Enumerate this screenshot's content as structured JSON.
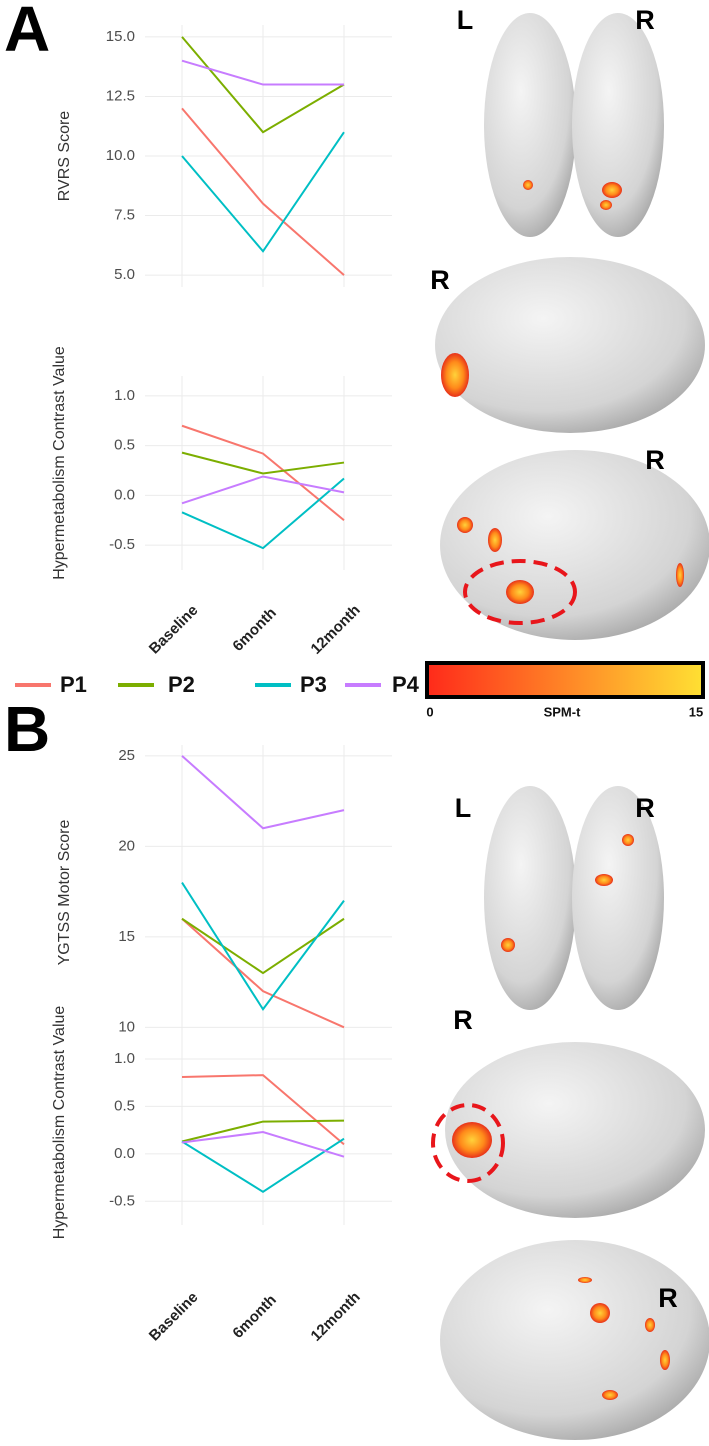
{
  "panels": [
    "A",
    "B"
  ],
  "brain_labels": [
    [
      "L",
      "R"
    ],
    [
      "R"
    ],
    [
      "R"
    ],
    [
      "L",
      "R"
    ],
    [
      "R"
    ],
    [
      "R"
    ]
  ],
  "colorbar": {
    "title": "SPM-t",
    "ticks": [
      0,
      15
    ],
    "colors": [
      "#ff2a1a",
      "#ffe033"
    ]
  },
  "chart_data": [
    {
      "type": "line",
      "y_label": "RVRS Score",
      "ylim": [
        4.5,
        15.5
      ],
      "yticks": [
        {
          "value": 5,
          "label": "5.0"
        },
        7.5,
        {
          "value": 10,
          "label": "10.0"
        },
        12.5,
        {
          "value": 15,
          "label": "15.0"
        }
      ],
      "grid": true,
      "series": [
        {
          "name": "P1",
          "color": "#f8766d",
          "values": [
            12,
            8,
            5
          ]
        },
        {
          "name": "P2",
          "color": "#7cae00",
          "values": [
            15,
            11,
            13
          ]
        },
        {
          "name": "P3",
          "color": "#00bfc4",
          "values": [
            10,
            6,
            11
          ]
        },
        {
          "name": "P4",
          "color": "#c77cff",
          "values": [
            14,
            13,
            13
          ]
        }
      ]
    },
    {
      "type": "line",
      "y_label": "Hypermetabolism Contrast Value",
      "ylim": [
        -0.75,
        1.2
      ],
      "categories": [
        "Baseline",
        "6month",
        "12month"
      ],
      "yticks": [
        -0.5,
        {
          "value": 0,
          "label": "0.0"
        },
        0.5,
        {
          "value": 1,
          "label": "1.0"
        }
      ],
      "grid": true,
      "series": [
        {
          "name": "P1",
          "color": "#f8766d",
          "values": [
            0.7,
            0.42,
            -0.25
          ]
        },
        {
          "name": "P2",
          "color": "#7cae00",
          "values": [
            0.43,
            0.22,
            0.33
          ]
        },
        {
          "name": "P3",
          "color": "#00bfc4",
          "values": [
            -0.17,
            -0.53,
            0.17
          ]
        },
        {
          "name": "P4",
          "color": "#c77cff",
          "values": [
            -0.08,
            0.19,
            0.03
          ]
        }
      ]
    },
    {
      "type": "line",
      "y_label": "YGTSS Motor Score",
      "ylim": [
        9.3,
        25.6
      ],
      "yticks": [
        10,
        15,
        20,
        25
      ],
      "grid": true,
      "series": [
        {
          "name": "P1",
          "color": "#f8766d",
          "values": [
            16,
            12,
            10
          ]
        },
        {
          "name": "P2",
          "color": "#7cae00",
          "values": [
            16,
            13,
            16
          ]
        },
        {
          "name": "P3",
          "color": "#00bfc4",
          "values": [
            18,
            11,
            17
          ]
        },
        {
          "name": "P4",
          "color": "#c77cff",
          "values": [
            25,
            21,
            22
          ]
        }
      ]
    },
    {
      "type": "line",
      "y_label": "Hypermetabolism Contrast Value",
      "ylim": [
        -0.75,
        1.2
      ],
      "categories": [
        "Baseline",
        "6month",
        "12month"
      ],
      "yticks": [
        -0.5,
        {
          "value": 0,
          "label": "0.0"
        },
        0.5,
        {
          "value": 1,
          "label": "1.0"
        }
      ],
      "grid": true,
      "series": [
        {
          "name": "P1",
          "color": "#f8766d",
          "values": [
            0.81,
            0.83,
            0.1
          ]
        },
        {
          "name": "P2",
          "color": "#7cae00",
          "values": [
            0.13,
            0.34,
            0.35
          ]
        },
        {
          "name": "P3",
          "color": "#00bfc4",
          "values": [
            0.13,
            -0.4,
            0.16
          ]
        },
        {
          "name": "P4",
          "color": "#c77cff",
          "values": [
            0.12,
            0.23,
            -0.03
          ]
        }
      ]
    }
  ]
}
